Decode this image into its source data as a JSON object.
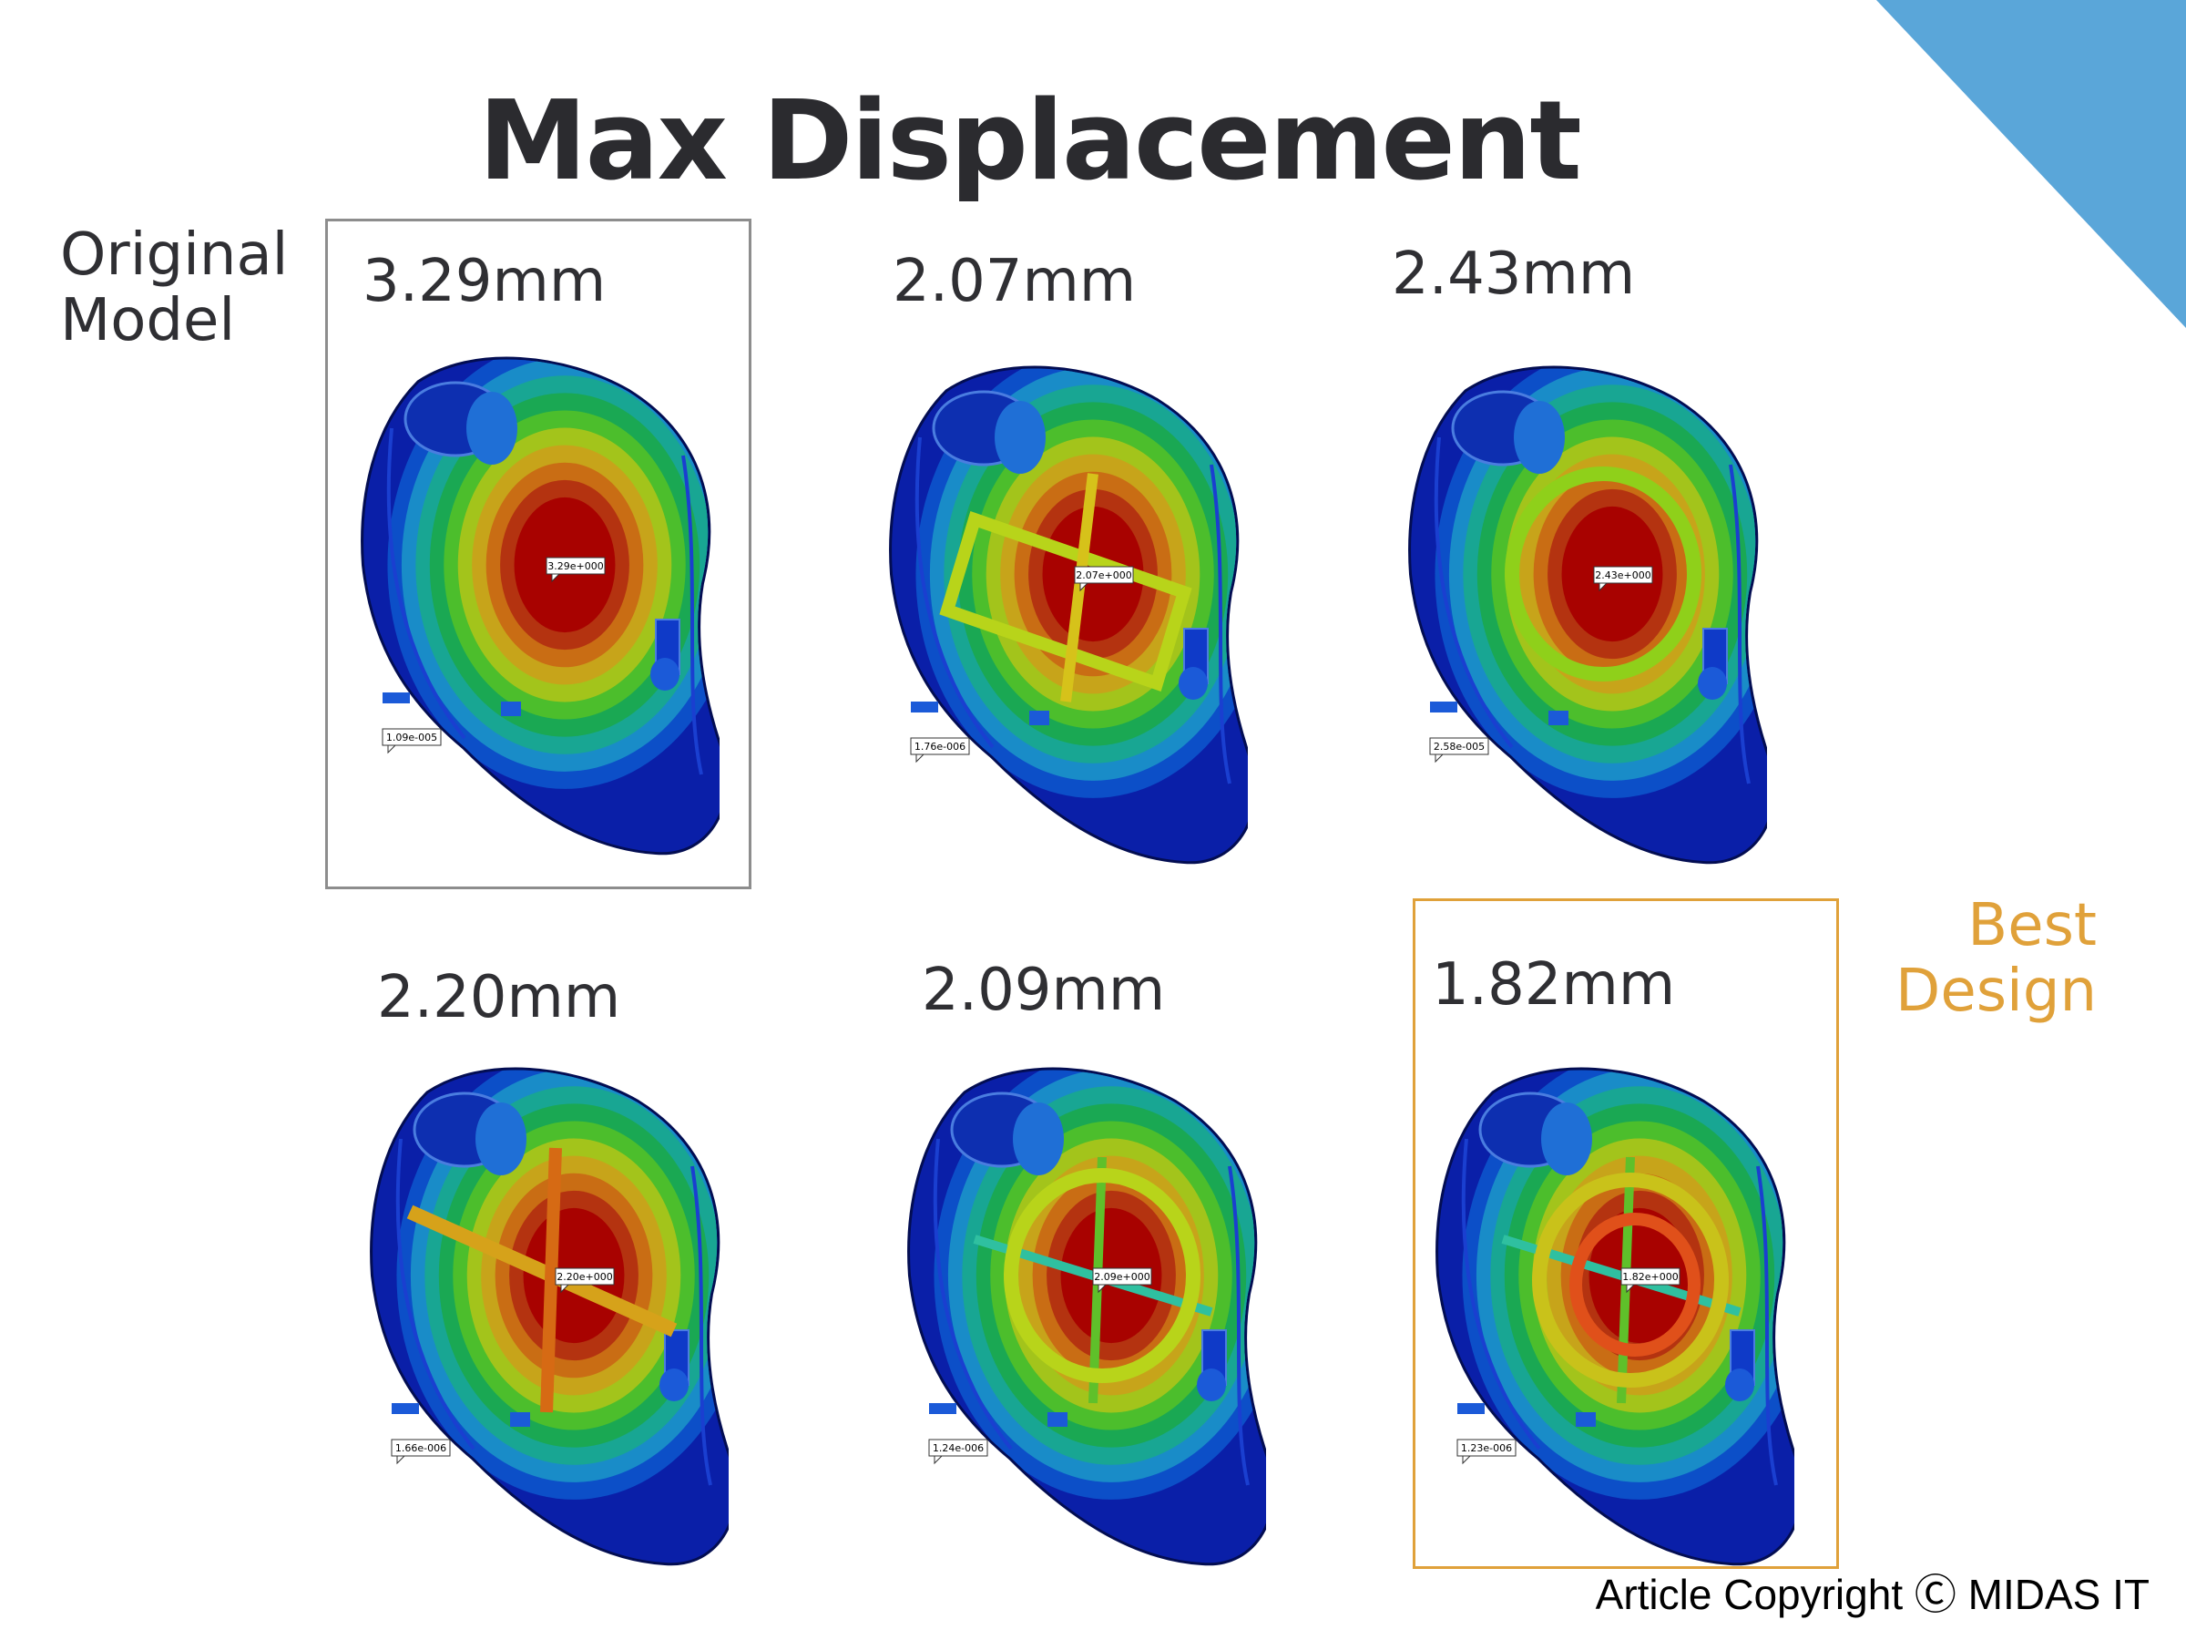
{
  "title": "Max Displacement",
  "side_labels": {
    "original_line1": "Original",
    "original_line2": "Model",
    "best_line1": "Best",
    "best_line2": "Design"
  },
  "panels": [
    {
      "value": "3.29mm",
      "max_tag": "3.29e+000",
      "min_tag": "1.09e-005",
      "ribs": "none"
    },
    {
      "value": "2.07mm",
      "max_tag": "2.07e+000",
      "min_tag": "1.76e-006",
      "ribs": "box-cross"
    },
    {
      "value": "2.43mm",
      "max_tag": "2.43e+000",
      "min_tag": "2.58e-005",
      "ribs": "ring"
    },
    {
      "value": "2.20mm",
      "max_tag": "2.20e+000",
      "min_tag": "1.66e-006",
      "ribs": "cross"
    },
    {
      "value": "2.09mm",
      "max_tag": "2.09e+000",
      "min_tag": "1.24e-006",
      "ribs": "ring-cross"
    },
    {
      "value": "1.82mm",
      "max_tag": "1.82e+000",
      "min_tag": "1.23e-006",
      "ribs": "double-ring-cross"
    }
  ],
  "copyright": "Article Copyright Ⓒ MIDAS IT",
  "colors": {
    "title": "#2b2b2f",
    "accent_corner": "#5aa6d9",
    "best_highlight": "#e0a13a",
    "original_frame": "#8d8d8d",
    "contour_low": "#0a1fa8",
    "contour_high": "#a80000"
  }
}
